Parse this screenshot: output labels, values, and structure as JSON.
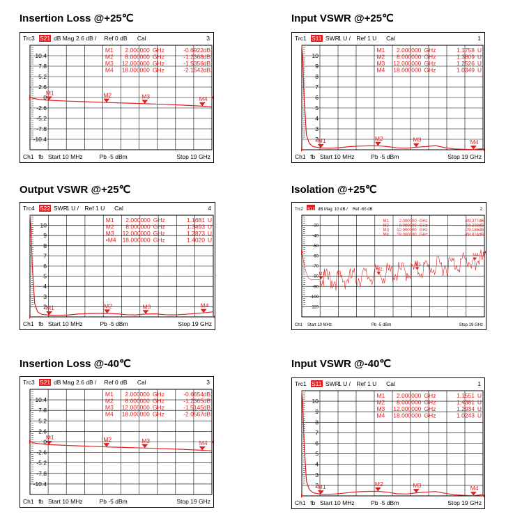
{
  "colors": {
    "trace": "#e02020",
    "grid": "#000000",
    "badge": "#e02020"
  },
  "chart_data": [
    {
      "title": "Insertion Loss @+25℃",
      "type": "line",
      "trace_id": "Trc3",
      "param": "S21",
      "format": "dB Mag",
      "scale": "2.6 dB /",
      "ref": "Ref 0 dB",
      "cal": "Cal",
      "channel_no": "3",
      "ylim": [
        -13,
        13
      ],
      "y_ticks": [
        "10.4",
        "7.8",
        "5.2",
        "2.6",
        "0",
        "-2.6",
        "-5.2",
        "-7.8",
        "-10.4"
      ],
      "ref_value": 0,
      "ch_label": "Ch1",
      "fb": "fb",
      "start": "Start  10 MHz",
      "pb": "Pb  -5 dBm",
      "stop": "Stop  19 GHz",
      "x_range": [
        0.01,
        19
      ],
      "markers": [
        {
          "name": "M1",
          "freq": "2.000000",
          "unit": "GHz",
          "value": "-0.6922",
          "vunit": "dB",
          "x": 2,
          "y": -0.6922
        },
        {
          "name": "M2",
          "freq": "8.000000",
          "unit": "GHz",
          "value": "-1.2368",
          "vunit": "dB",
          "x": 8,
          "y": -1.2368
        },
        {
          "name": "M3",
          "freq": "12.000000",
          "unit": "GHz",
          "value": "-1.5356",
          "vunit": "dB",
          "x": 12,
          "y": -1.5356
        },
        {
          "name": "M4",
          "freq": "18.000000",
          "unit": "GHz",
          "value": "-2.1542",
          "vunit": "dB",
          "x": 18,
          "y": -2.1542
        }
      ],
      "series": [
        {
          "x": [
            0.01,
            0.3,
            1,
            2,
            4,
            6,
            8,
            10,
            12,
            14,
            16,
            18,
            19
          ],
          "y": [
            0.2,
            -0.2,
            -0.5,
            -0.69,
            -0.9,
            -1.05,
            -1.24,
            -1.38,
            -1.54,
            -1.7,
            -1.9,
            -2.15,
            -2.3
          ]
        }
      ]
    },
    {
      "title": "Input VSWR @+25℃",
      "type": "line",
      "trace_id": "Trc1",
      "param": "S11",
      "format": "SWR",
      "scale": "1 U /",
      "ref": "Ref 1 U",
      "cal": "Cal",
      "channel_no": "1",
      "ylim": [
        1,
        11
      ],
      "y_ticks": [
        "10",
        "9",
        "8",
        "7",
        "6",
        "5",
        "4",
        "3",
        "2"
      ],
      "ref_value": 1,
      "ch_label": "Ch1",
      "fb": "fb",
      "start": "Start  10 MHz",
      "pb": "Pb  -5 dBm",
      "stop": "Stop  19 GHz",
      "x_range": [
        0.01,
        19
      ],
      "markers": [
        {
          "name": "M1",
          "freq": "2.000000",
          "unit": "GHz",
          "value": "1.1758",
          "vunit": "U",
          "x": 2,
          "y": 1.1758
        },
        {
          "name": "M2",
          "freq": "8.000000",
          "unit": "GHz",
          "value": "1.3809",
          "vunit": "U",
          "x": 8,
          "y": 1.3809
        },
        {
          "name": "M3",
          "freq": "12.000000",
          "unit": "GHz",
          "value": "1.2526",
          "vunit": "U",
          "x": 12,
          "y": 1.2526
        },
        {
          "name": "M4",
          "freq": "18.000000",
          "unit": "GHz",
          "value": "1.0349",
          "vunit": "U",
          "x": 18,
          "y": 1.0349
        }
      ],
      "series": [
        {
          "x": [
            0.01,
            0.1,
            0.25,
            0.5,
            0.8,
            1.2,
            2,
            3,
            4,
            5,
            6,
            7,
            8,
            9,
            10,
            11,
            12,
            13,
            14,
            15,
            16,
            17,
            18,
            19
          ],
          "y": [
            11,
            10,
            6,
            2.4,
            1.6,
            1.3,
            1.18,
            1.15,
            1.2,
            1.3,
            1.35,
            1.37,
            1.38,
            1.3,
            1.18,
            1.15,
            1.25,
            1.3,
            1.4,
            1.2,
            1.08,
            1.05,
            1.03,
            1.1
          ]
        }
      ]
    },
    {
      "title": "Output VSWR @+25℃",
      "type": "line",
      "trace_id": "Trc4",
      "param": "S22",
      "format": "SWR",
      "scale": "1 U /",
      "ref": "Ref 1 U",
      "cal": "Cal",
      "channel_no": "4",
      "ylim": [
        1,
        11
      ],
      "y_ticks": [
        "10",
        "9",
        "8",
        "7",
        "6",
        "5",
        "4",
        "3",
        "2"
      ],
      "ref_value": 1,
      "ch_label": "Ch1",
      "fb": "fb",
      "start": "Start  10 MHz",
      "pb": "Pb  -5 dBm",
      "stop": "Stop  19 GHz",
      "x_range": [
        0.01,
        19
      ],
      "markers": [
        {
          "name": "M1",
          "freq": "2.000000",
          "unit": "GHz",
          "value": "1.1681",
          "vunit": "U",
          "x": 2,
          "y": 1.1681
        },
        {
          "name": "M2",
          "freq": "8.000000",
          "unit": "GHz",
          "value": "1.3493",
          "vunit": "U",
          "x": 8,
          "y": 1.3493
        },
        {
          "name": "M3",
          "freq": "12.000000",
          "unit": "GHz",
          "value": "1.2873",
          "vunit": "U",
          "x": 12,
          "y": 1.2873
        },
        {
          "name": "•M4",
          "freq": "18.000000",
          "unit": "GHz",
          "value": "1.4020",
          "vunit": "U",
          "x": 18,
          "y": 1.402
        }
      ],
      "series": [
        {
          "x": [
            0.01,
            0.1,
            0.25,
            0.5,
            0.8,
            1.2,
            2,
            3,
            4,
            5,
            6,
            7,
            8,
            9,
            10,
            11,
            12,
            13,
            14,
            15,
            16,
            17,
            18,
            19
          ],
          "y": [
            11,
            10,
            6,
            2.3,
            1.5,
            1.25,
            1.17,
            1.15,
            1.2,
            1.28,
            1.32,
            1.34,
            1.35,
            1.3,
            1.22,
            1.2,
            1.29,
            1.3,
            1.22,
            1.2,
            1.25,
            1.32,
            1.4,
            1.5
          ]
        }
      ]
    },
    {
      "title": "Isolation @+25℃",
      "type": "line",
      "trace_id": "Trc2",
      "param": "S12",
      "format": "dB Mag",
      "scale": "10 dB /",
      "ref": "Ref -60 dB",
      "cal": "",
      "channel_no": "2",
      "ylim": [
        -130,
        -20
      ],
      "y_ticks": [
        "-30",
        "-40",
        "-50",
        "-60",
        "-70",
        "-80",
        "-90",
        "-100",
        "-110"
      ],
      "ref_value": -60,
      "ch_label": "Ch1",
      "fb": "",
      "start": "Start  10 MHz",
      "pb": "Pb  -5 dBm",
      "stop": "Stop  19 GHz",
      "x_range": [
        0.01,
        19
      ],
      "markers": [
        {
          "name": "M1",
          "freq": "2.000000",
          "unit": "GHz",
          "value": "-89.377",
          "vunit": "dB",
          "x": 2,
          "y": -89.377
        },
        {
          "name": "M2",
          "freq": "8.000000",
          "unit": "GHz",
          "value": "-84.233",
          "vunit": "dB",
          "x": 8,
          "y": -84.233
        },
        {
          "name": "M3",
          "freq": "12.000000",
          "unit": "GHz",
          "value": "-79.186",
          "vunit": "dB",
          "x": 12,
          "y": -79.186
        },
        {
          "name": "M4",
          "freq": "18.000000",
          "unit": "GHz",
          "value": "-68.814",
          "vunit": "dB",
          "x": 18,
          "y": -68.814
        }
      ],
      "series": [
        {
          "x": [
            0.01,
            0.2,
            0.4,
            0.7,
            1,
            2,
            4,
            6,
            8,
            10,
            12,
            14,
            16,
            18,
            19
          ],
          "y": [
            -60,
            -70,
            -80,
            -88,
            -90,
            -89.4,
            -90,
            -87,
            -84.2,
            -82,
            -79.2,
            -76,
            -72,
            -68.8,
            -68
          ]
        }
      ]
    },
    {
      "title": "Insertion Loss @-40℃",
      "type": "line",
      "trace_id": "Trc3",
      "param": "S21",
      "format": "dB Mag",
      "scale": "2.6 dB /",
      "ref": "Ref 0 dB",
      "cal": "Cal",
      "channel_no": "3",
      "ylim": [
        -13,
        13
      ],
      "y_ticks": [
        "10.4",
        "7.8",
        "5.2",
        "2.6",
        "0",
        "-2.6",
        "-5.2",
        "-7.8",
        "-10.4"
      ],
      "ref_value": 0,
      "ch_label": "Ch1",
      "fb": "fb",
      "start": "Start  10 MHz",
      "pb": "Pb  -5 dBm",
      "stop": "Stop  19 GHz",
      "x_range": [
        0.01,
        19
      ],
      "markers": [
        {
          "name": "M1",
          "freq": "2.000000",
          "unit": "GHz",
          "value": "-0.6654",
          "vunit": "dB",
          "x": 2,
          "y": -0.6654
        },
        {
          "name": "M2",
          "freq": "8.000000",
          "unit": "GHz",
          "value": "-1.2365",
          "vunit": "dB",
          "x": 8,
          "y": -1.2365
        },
        {
          "name": "M3",
          "freq": "12.000000",
          "unit": "GHz",
          "value": "-1.5145",
          "vunit": "dB",
          "x": 12,
          "y": -1.5145
        },
        {
          "name": "M4",
          "freq": "18.000000",
          "unit": "GHz",
          "value": "-2.0567",
          "vunit": "dB",
          "x": 18,
          "y": -2.0567
        }
      ],
      "series": [
        {
          "x": [
            0.01,
            0.3,
            1,
            2,
            4,
            6,
            8,
            10,
            12,
            14,
            16,
            18,
            19
          ],
          "y": [
            0.2,
            -0.2,
            -0.45,
            -0.67,
            -0.88,
            -1.05,
            -1.24,
            -1.38,
            -1.51,
            -1.68,
            -1.85,
            -2.06,
            -2.2
          ]
        }
      ]
    },
    {
      "title": "Input VSWR @-40℃",
      "type": "line",
      "trace_id": "Trc1",
      "param": "S11",
      "format": "SWR",
      "scale": "1 U /",
      "ref": "Ref 1 U",
      "cal": "Cal",
      "channel_no": "1",
      "ylim": [
        1,
        11
      ],
      "y_ticks": [
        "10",
        "9",
        "8",
        "7",
        "6",
        "5",
        "4",
        "3",
        "2"
      ],
      "ref_value": 1,
      "ch_label": "Ch1",
      "fb": "fb",
      "start": "Start  10 MHz",
      "pb": "Pb  -5 dBm",
      "stop": "Stop  19 GHz",
      "x_range": [
        0.01,
        19
      ],
      "markers": [
        {
          "name": "M1",
          "freq": "2.000000",
          "unit": "GHz",
          "value": "1.1551",
          "vunit": "U",
          "x": 2,
          "y": 1.1551
        },
        {
          "name": "M2",
          "freq": "8.000000",
          "unit": "GHz",
          "value": "1.4381",
          "vunit": "U",
          "x": 8,
          "y": 1.4381
        },
        {
          "name": "M3",
          "freq": "12.000000",
          "unit": "GHz",
          "value": "1.2934",
          "vunit": "U",
          "x": 12,
          "y": 1.2934
        },
        {
          "name": "M4",
          "freq": "18.000000",
          "unit": "GHz",
          "value": "1.0243",
          "vunit": "U",
          "x": 18,
          "y": 1.0243
        }
      ],
      "series": [
        {
          "x": [
            0.01,
            0.1,
            0.25,
            0.5,
            0.8,
            1.2,
            2,
            3,
            4,
            5,
            6,
            7,
            8,
            9,
            10,
            11,
            12,
            13,
            14,
            15,
            16,
            17,
            18,
            19
          ],
          "y": [
            11,
            10,
            6,
            2.4,
            1.6,
            1.3,
            1.16,
            1.15,
            1.22,
            1.32,
            1.4,
            1.43,
            1.44,
            1.35,
            1.2,
            1.18,
            1.29,
            1.35,
            1.42,
            1.25,
            1.1,
            1.05,
            1.02,
            1.12
          ]
        }
      ]
    }
  ]
}
